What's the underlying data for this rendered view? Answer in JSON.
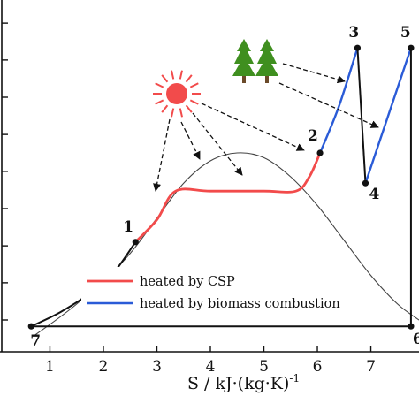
{
  "chart_data": {
    "type": "line",
    "title": "",
    "xlabel": "S / kJ·(kg·K)",
    "xlabel_exponent": "-1",
    "ylabel": "",
    "xlim": [
      0.1,
      7.9
    ],
    "ylim": [
      0,
      1
    ],
    "x_ticks": [
      "1",
      "2",
      "3",
      "4",
      "5",
      "6",
      "7"
    ],
    "x_tick_values": [
      1,
      2,
      3,
      4,
      5,
      6,
      7
    ],
    "y_tick_values": [
      0.05,
      0.167,
      0.283,
      0.4,
      0.517,
      0.633,
      0.75,
      0.867,
      0.983
    ],
    "grid": false,
    "legend_position": "bottom-right",
    "legend": [
      {
        "label": "heated by CSP",
        "color": "#f24b4b"
      },
      {
        "label": "heated by biomass combustion",
        "color": "#2a5bd7"
      }
    ],
    "saturation_dome": [
      [
        0.7,
        0.0
      ],
      [
        1.5,
        0.1
      ],
      [
        2.4,
        0.24
      ],
      [
        3.0,
        0.37
      ],
      [
        3.5,
        0.48
      ],
      [
        4.0,
        0.55
      ],
      [
        4.5,
        0.575
      ],
      [
        5.0,
        0.56
      ],
      [
        5.5,
        0.5
      ],
      [
        6.0,
        0.41
      ],
      [
        6.5,
        0.3
      ],
      [
        7.0,
        0.19
      ],
      [
        7.5,
        0.1
      ],
      [
        7.9,
        0.05
      ]
    ],
    "states": [
      {
        "label": "1",
        "x": 2.6,
        "y": 0.295
      },
      {
        "label": "2",
        "x": 6.05,
        "y": 0.575
      },
      {
        "label": "3",
        "x": 6.75,
        "y": 0.905
      },
      {
        "label": "4",
        "x": 6.9,
        "y": 0.48
      },
      {
        "label": "5",
        "x": 7.75,
        "y": 0.905
      },
      {
        "label": "6",
        "x": 7.75,
        "y": 0.03
      },
      {
        "label": "7",
        "x": 0.65,
        "y": 0.03
      }
    ],
    "series": [
      {
        "segment": "pump-and-liquid",
        "color": "#111111",
        "points": [
          [
            0.65,
            0.03
          ],
          [
            1.2,
            0.075
          ],
          [
            1.8,
            0.14
          ],
          [
            2.2,
            0.2
          ],
          [
            2.6,
            0.295
          ]
        ]
      },
      {
        "segment": "csp-heating",
        "color": "#f24b4b",
        "points": [
          [
            2.6,
            0.295
          ],
          [
            3.0,
            0.365
          ],
          [
            3.35,
            0.455
          ],
          [
            4.0,
            0.455
          ],
          [
            5.0,
            0.455
          ],
          [
            5.6,
            0.455
          ],
          [
            5.85,
            0.5
          ],
          [
            6.05,
            0.575
          ]
        ]
      },
      {
        "segment": "biomass-heating-1",
        "color": "#2a5bd7",
        "points": [
          [
            6.05,
            0.575
          ],
          [
            6.4,
            0.72
          ],
          [
            6.75,
            0.905
          ]
        ]
      },
      {
        "segment": "expansion-1",
        "color": "#111111",
        "points": [
          [
            6.75,
            0.905
          ],
          [
            6.9,
            0.48
          ]
        ]
      },
      {
        "segment": "biomass-heating-2",
        "color": "#2a5bd7",
        "points": [
          [
            6.9,
            0.48
          ],
          [
            7.3,
            0.68
          ],
          [
            7.75,
            0.905
          ]
        ]
      },
      {
        "segment": "expansion-2",
        "color": "#111111",
        "points": [
          [
            7.75,
            0.905
          ],
          [
            7.75,
            0.03
          ]
        ]
      },
      {
        "segment": "condensation",
        "color": "#111111",
        "points": [
          [
            7.75,
            0.03
          ],
          [
            0.65,
            0.03
          ]
        ]
      }
    ],
    "annotations": {
      "sun_icon": "sun-icon",
      "sun_color": "#f24b4b",
      "tree_icon": "tree-icon",
      "tree_color": "#3f8f1f"
    }
  }
}
